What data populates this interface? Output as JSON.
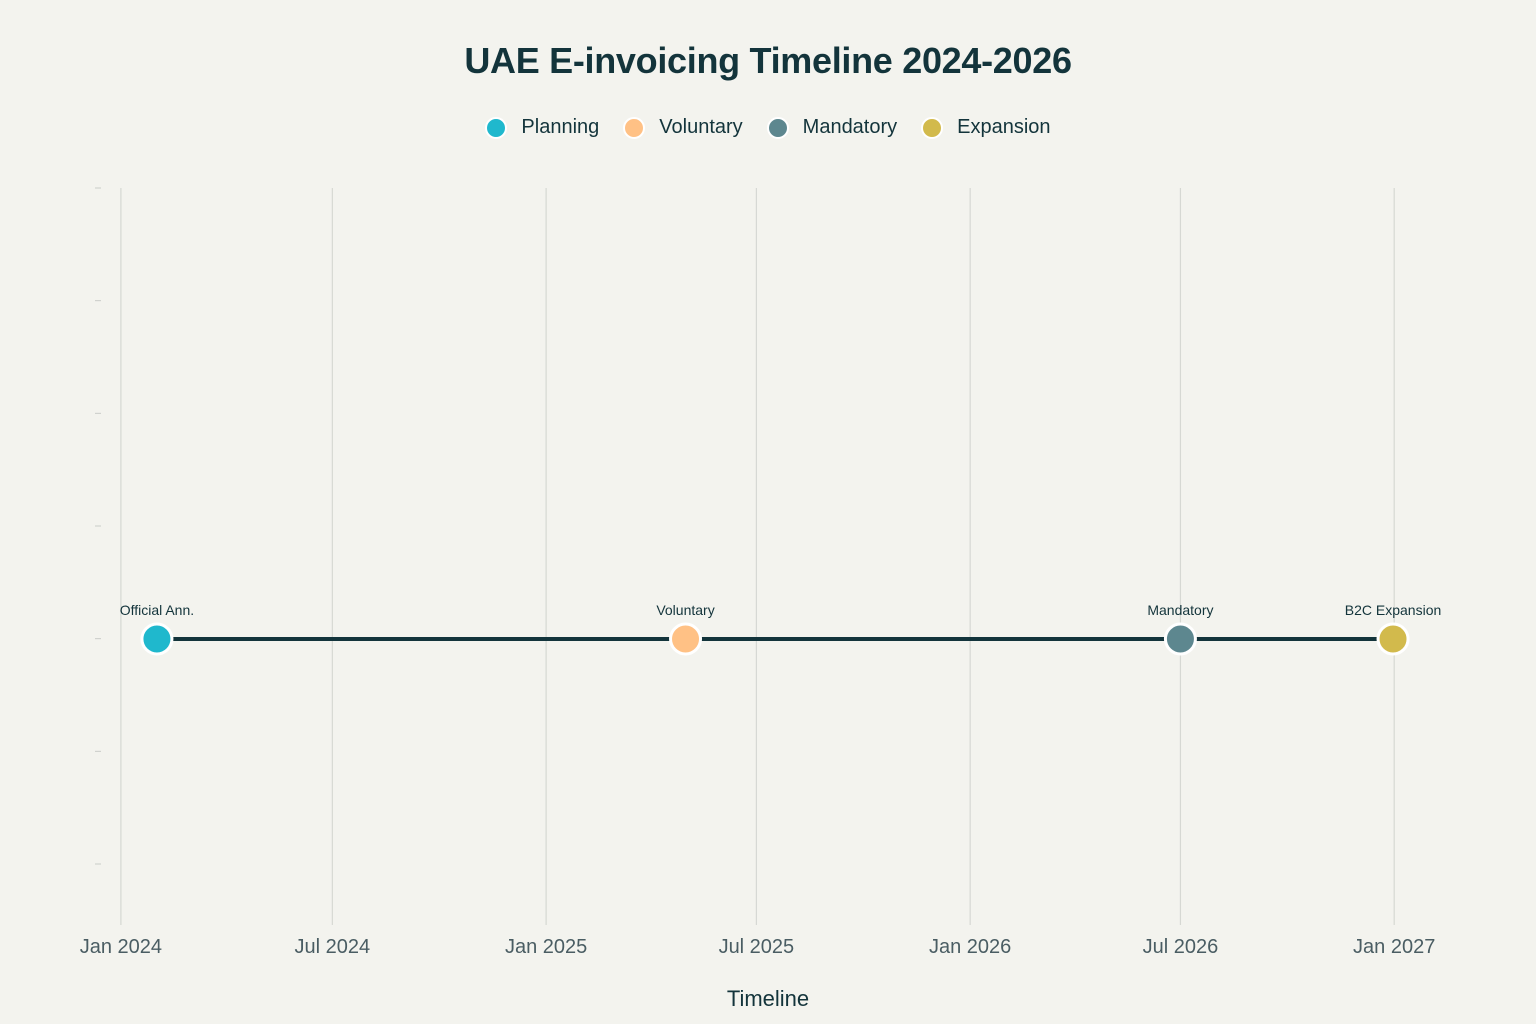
{
  "chart_data": {
    "type": "scatter",
    "title": "UAE E-invoicing Timeline 2024-2026",
    "xlabel": "Timeline",
    "ylabel": "",
    "xlim": [
      "2023-12-14",
      "2027-01-06"
    ],
    "x_ticks": [
      {
        "date": "2024-01-01",
        "label": "Jan 2024"
      },
      {
        "date": "2024-07-01",
        "label": "Jul 2024"
      },
      {
        "date": "2025-01-01",
        "label": "Jan 2025"
      },
      {
        "date": "2025-07-01",
        "label": "Jul 2025"
      },
      {
        "date": "2026-01-01",
        "label": "Jan 2026"
      },
      {
        "date": "2026-07-01",
        "label": "Jul 2026"
      },
      {
        "date": "2027-01-01",
        "label": "Jan 2027"
      }
    ],
    "grid": "vertical",
    "legend_position": "top-center",
    "line_color": "#13343b",
    "series": [
      {
        "name": "Planning",
        "color": "#1fb8cd",
        "points": [
          {
            "x": "2024-02-01",
            "label": "Official Ann."
          }
        ]
      },
      {
        "name": "Voluntary",
        "color": "#ffc185",
        "points": [
          {
            "x": "2025-05-01",
            "label": "Voluntary"
          }
        ]
      },
      {
        "name": "Mandatory",
        "color": "#5d878f",
        "points": [
          {
            "x": "2026-07-01",
            "label": "Mandatory"
          }
        ]
      },
      {
        "name": "Expansion",
        "color": "#d2ba4c",
        "points": [
          {
            "x": "2026-12-31",
            "label": "B2C Expansion"
          }
        ]
      }
    ]
  }
}
